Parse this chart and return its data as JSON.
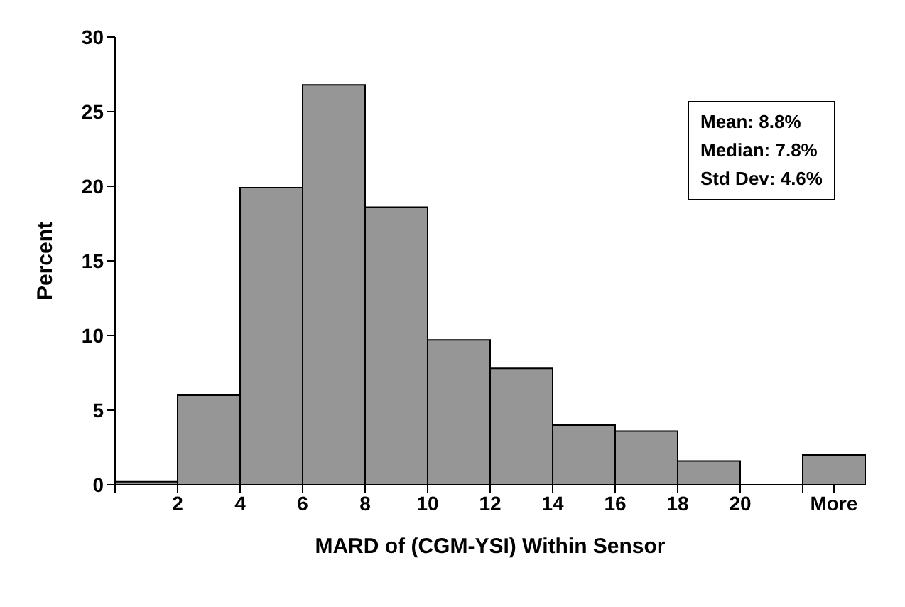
{
  "chart_data": {
    "type": "histogram",
    "xlabel": "MARD of (CGM-YSI) Within Sensor",
    "ylabel": "Percent",
    "bins": [
      0,
      2,
      4,
      6,
      8,
      10,
      12,
      14,
      16,
      18,
      20,
      22,
      24
    ],
    "values": [
      0.2,
      6.0,
      19.9,
      26.8,
      18.6,
      9.7,
      7.8,
      4.0,
      3.6,
      1.6,
      0,
      2.0
    ],
    "color": "#969696",
    "xlim": [
      0,
      24
    ],
    "xticks": [
      {
        "value": 0,
        "label": null
      },
      2,
      4,
      6,
      8,
      10,
      12,
      14,
      16,
      18,
      20,
      {
        "value": 22,
        "label": null
      },
      {
        "value": 23,
        "label": "More"
      }
    ],
    "ylim": [
      0,
      30
    ],
    "yticks": [
      0,
      5,
      10,
      15,
      20,
      25,
      30
    ],
    "grid": false,
    "annotations": [
      "Mean: 8.8%\nMedian: 7.8%\nStd Dev: 4.6%"
    ]
  }
}
